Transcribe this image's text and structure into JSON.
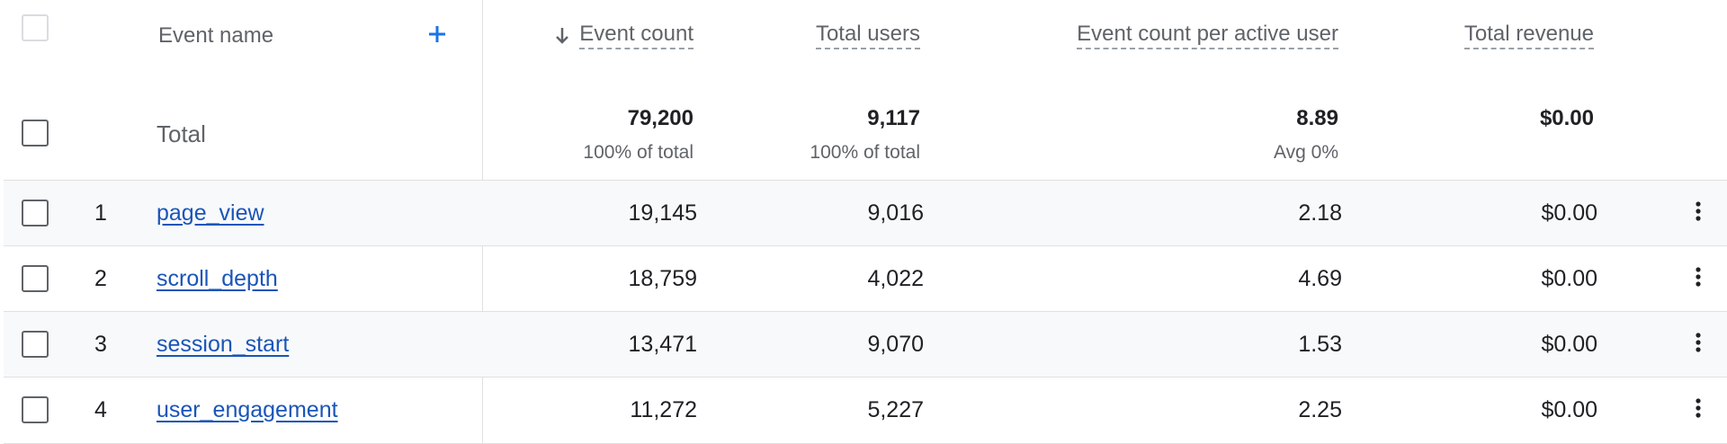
{
  "header": {
    "event_name": "Event name",
    "add_dimension_icon": "plus-icon",
    "sort_icon": "arrow-down-icon",
    "columns": [
      {
        "key": "event_count",
        "label": "Event count",
        "sorted": "descending"
      },
      {
        "key": "total_users",
        "label": "Total users"
      },
      {
        "key": "event_count_per_active_user",
        "label": "Event count per active user"
      },
      {
        "key": "total_revenue",
        "label": "Total revenue"
      }
    ]
  },
  "totals": {
    "label": "Total",
    "event_count": "79,200",
    "event_count_sub": "100% of total",
    "total_users": "9,117",
    "total_users_sub": "100% of total",
    "per_user": "8.89",
    "per_user_sub": "Avg 0%",
    "total_revenue": "$0.00"
  },
  "rows": [
    {
      "index": "1",
      "event_name": "page_view",
      "event_count": "19,145",
      "total_users": "9,016",
      "per_user": "2.18",
      "total_revenue": "$0.00"
    },
    {
      "index": "2",
      "event_name": "scroll_depth",
      "event_count": "18,759",
      "total_users": "4,022",
      "per_user": "4.69",
      "total_revenue": "$0.00"
    },
    {
      "index": "3",
      "event_name": "session_start",
      "event_count": "13,471",
      "total_users": "9,070",
      "per_user": "1.53",
      "total_revenue": "$0.00"
    },
    {
      "index": "4",
      "event_name": "user_engagement",
      "event_count": "11,272",
      "total_users": "5,227",
      "per_user": "2.25",
      "total_revenue": "$0.00"
    }
  ],
  "row_menu_icon": "more-vertical-icon",
  "colors": {
    "link": "#1a55b8",
    "accent": "#1a73e8",
    "border": "#e0e0e0",
    "shade": "#f8f9fa",
    "muted": "#5f6368"
  }
}
